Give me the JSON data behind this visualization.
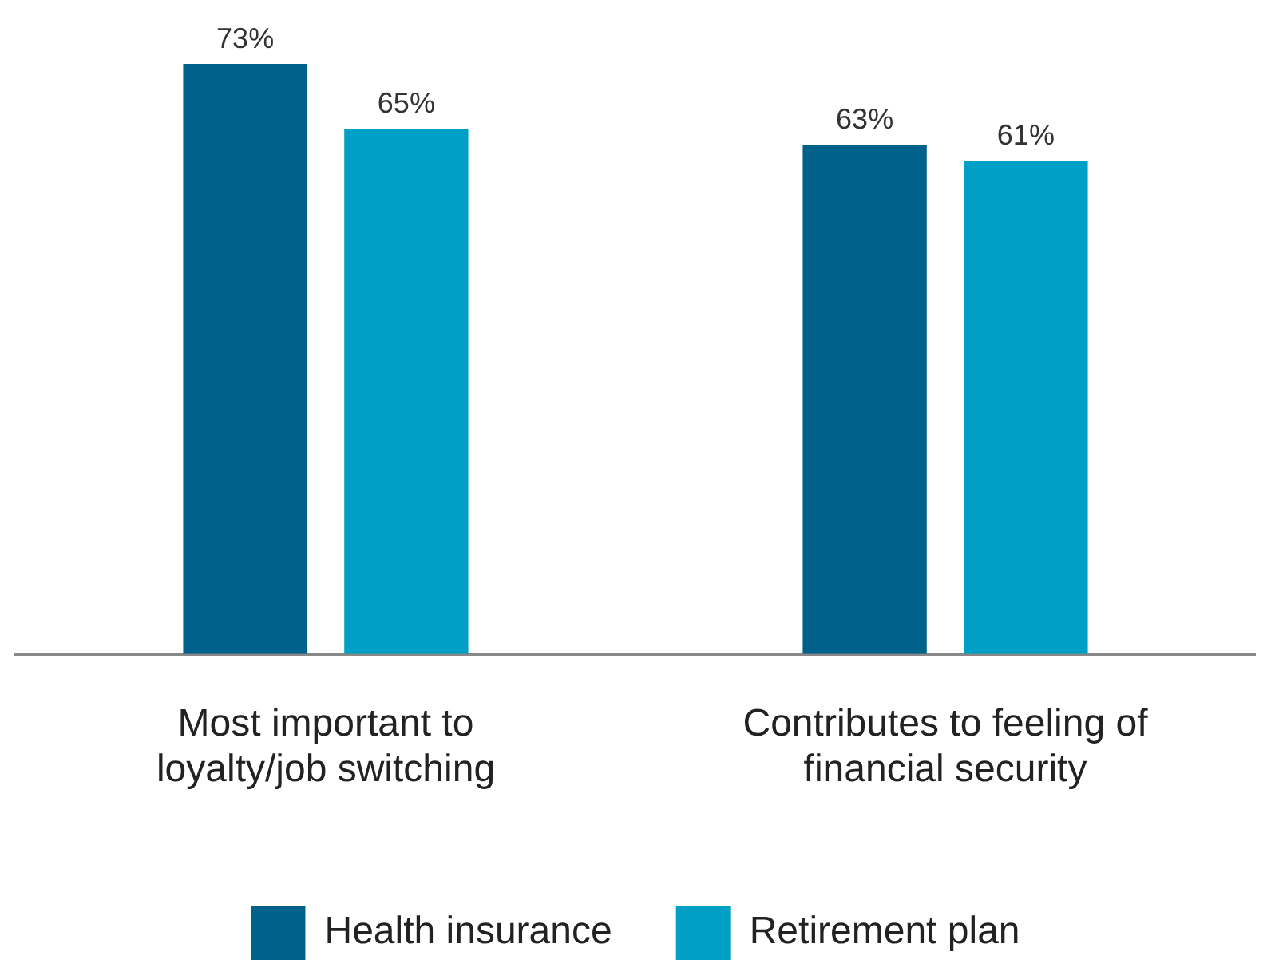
{
  "chart_data": {
    "type": "bar",
    "categories": [
      "Most important to loyalty/job switching",
      "Contributes to feeling of financial security"
    ],
    "series": [
      {
        "name": "Health insurance",
        "color": "#00628b",
        "values": [
          73,
          63
        ],
        "value_labels": [
          "73%",
          "63%"
        ]
      },
      {
        "name": "Retirement plan",
        "color": "#00a0c6",
        "values": [
          65,
          61
        ],
        "value_labels": [
          "65%",
          "61%"
        ]
      }
    ],
    "legend": "bottom",
    "grid": false
  }
}
